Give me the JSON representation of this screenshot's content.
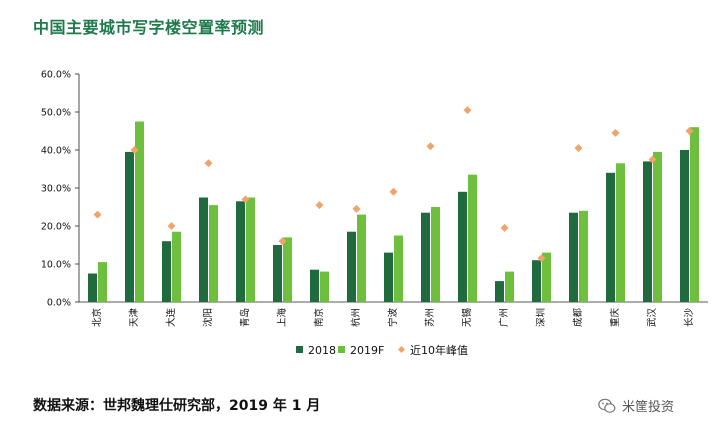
{
  "page": {
    "title": "中国主要城市写字楼空置率预测",
    "source": "数据来源：世邦魏理仕研究部，2019 年 1 月",
    "watermark_text": "米筐投资",
    "watermark_icon": "wechat-icon"
  },
  "colors": {
    "title": "#1e7a4a",
    "s2018": "#1f6b3e",
    "s2019F": "#6fbf3f",
    "peak": "#f0a46a"
  },
  "chart_data": {
    "type": "bar",
    "title": "中国主要城市写字楼空置率预测",
    "categories": [
      "北京",
      "天津",
      "大连",
      "沈阳",
      "青岛",
      "上海",
      "南京",
      "杭州",
      "宁波",
      "苏州",
      "无锡",
      "广州",
      "深圳",
      "成都",
      "重庆",
      "武汉",
      "长沙"
    ],
    "series": [
      {
        "name": "2018",
        "type": "bar",
        "values": [
          7.5,
          39.5,
          16.0,
          27.5,
          26.5,
          15.0,
          8.5,
          18.5,
          13.0,
          23.5,
          29.0,
          5.5,
          11.0,
          23.5,
          34.0,
          37.0,
          40.0
        ]
      },
      {
        "name": "2019F",
        "type": "bar",
        "values": [
          10.5,
          47.5,
          18.5,
          25.5,
          27.5,
          17.0,
          8.0,
          23.0,
          17.5,
          25.0,
          33.5,
          8.0,
          13.0,
          24.0,
          36.5,
          39.5,
          46.0
        ]
      },
      {
        "name": "近10年峰值",
        "type": "scatter",
        "values": [
          23.0,
          40.0,
          20.0,
          36.5,
          27.0,
          16.0,
          25.5,
          24.5,
          29.0,
          41.0,
          50.5,
          19.5,
          11.5,
          40.5,
          44.5,
          37.5,
          45.0
        ]
      }
    ],
    "yticks": [
      "0.0%",
      "10.0%",
      "20.0%",
      "30.0%",
      "40.0%",
      "50.0%",
      "60.0%"
    ],
    "ylim": [
      0,
      60
    ],
    "legend_position": "bottom",
    "grid": false
  }
}
